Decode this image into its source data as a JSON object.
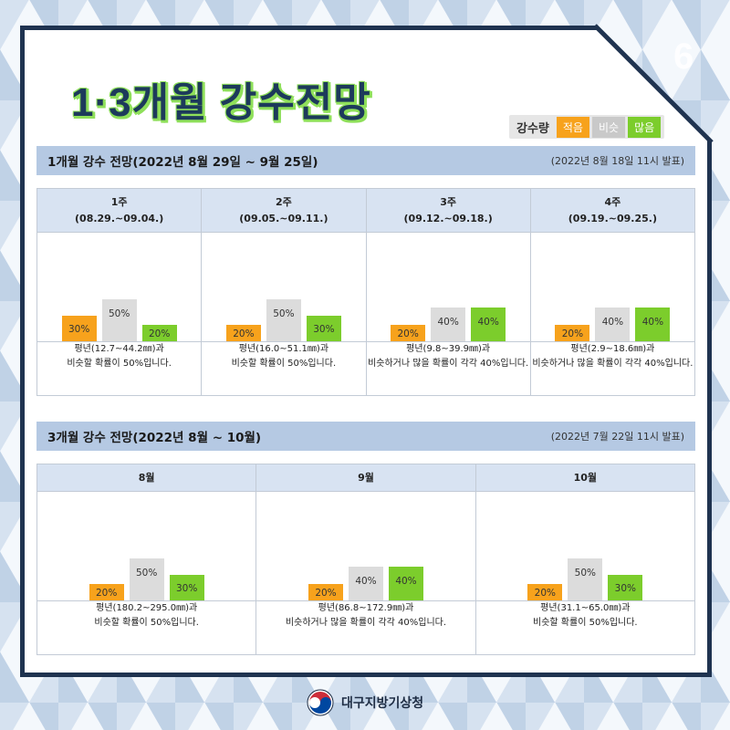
{
  "page_number": "6",
  "title": "1·3개월 강수전망",
  "legend": {
    "title": "강수량",
    "low": "적음",
    "similar": "비슷",
    "high": "많음"
  },
  "colors": {
    "low": "#f7a21c",
    "similar": "#dcdcdc",
    "high": "#7ccd2c",
    "header": "#b5c9e3",
    "navy": "#1f3350"
  },
  "section1": {
    "title": "1개월 강수 전망(2022년 8월 29일 ~ 9월 25일)",
    "issued": "(2022년 8월 18일 11시 발표)"
  },
  "section2": {
    "title": "3개월 강수 전망(2022년 8월 ~ 10월)",
    "issued": "(2022년 7월 22일 11시 발표)"
  },
  "chart_data": [
    {
      "type": "bar",
      "title": "1개월 강수 전망(2022년 8월 29일 ~ 9월 25일)",
      "ylim": [
        0,
        100
      ],
      "panels": [
        {
          "label": "1주",
          "period": "(08.29.~09.04.)",
          "values": [
            30,
            50,
            20
          ],
          "labels": [
            "30%",
            "50%",
            "20%"
          ],
          "desc1": "평년(12.7~44.2㎜)과",
          "desc2": "비슷할 확률이 50%입니다."
        },
        {
          "label": "2주",
          "period": "(09.05.~09.11.)",
          "values": [
            20,
            50,
            30
          ],
          "labels": [
            "20%",
            "50%",
            "30%"
          ],
          "desc1": "평년(16.0~51.1㎜)과",
          "desc2": "비슷할 확률이 50%입니다."
        },
        {
          "label": "3주",
          "period": "(09.12.~09.18.)",
          "values": [
            20,
            40,
            40
          ],
          "labels": [
            "20%",
            "40%",
            "40%"
          ],
          "desc1": "평년(9.8~39.9㎜)과",
          "desc2": "비슷하거나 많을 확률이 각각 40%입니다."
        },
        {
          "label": "4주",
          "period": "(09.19.~09.25.)",
          "values": [
            20,
            40,
            40
          ],
          "labels": [
            "20%",
            "40%",
            "40%"
          ],
          "desc1": "평년(2.9~18.6㎜)과",
          "desc2": "비슷하거나 많을 확률이 각각 40%입니다."
        }
      ]
    },
    {
      "type": "bar",
      "title": "3개월 강수 전망(2022년 8월 ~ 10월)",
      "ylim": [
        0,
        100
      ],
      "panels": [
        {
          "label": "8월",
          "values": [
            20,
            50,
            30
          ],
          "labels": [
            "20%",
            "50%",
            "30%"
          ],
          "desc1": "평년(180.2~295.0㎜)과",
          "desc2": "비슷할 확률이 50%입니다."
        },
        {
          "label": "9월",
          "values": [
            20,
            40,
            40
          ],
          "labels": [
            "20%",
            "40%",
            "40%"
          ],
          "desc1": "평년(86.8~172.9㎜)과",
          "desc2": "비슷하거나 많을 확률이 각각 40%입니다."
        },
        {
          "label": "10월",
          "values": [
            20,
            50,
            30
          ],
          "labels": [
            "20%",
            "50%",
            "30%"
          ],
          "desc1": "평년(31.1~65.0㎜)과",
          "desc2": "비슷할 확률이 50%입니다."
        }
      ]
    }
  ],
  "footer": {
    "agency": "대구지방기상청"
  }
}
